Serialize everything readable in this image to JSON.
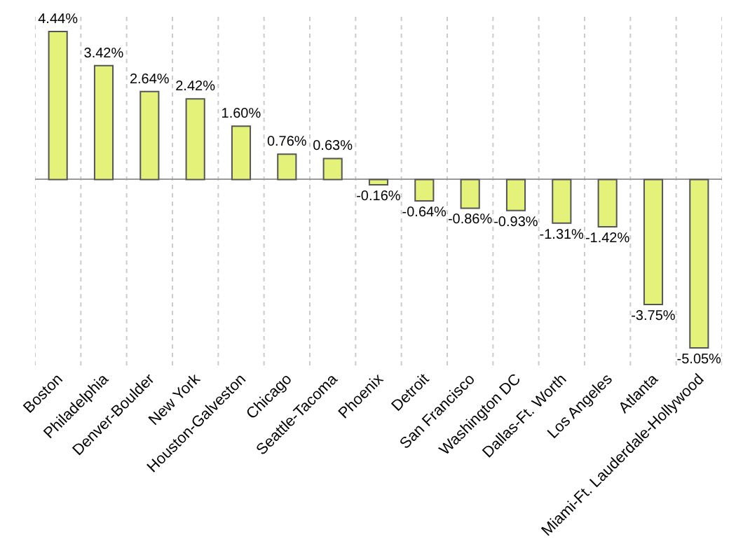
{
  "chart_data": {
    "type": "bar",
    "categories": [
      "Boston",
      "Philadelphia",
      "Denver-Boulder",
      "New York",
      "Houston-Galveston",
      "Chicago",
      "Seattle-Tacoma",
      "Phoenix",
      "Detroit",
      "San Francisco",
      "Washington DC",
      "Dallas-Ft. Worth",
      "Los Angeles",
      "Atlanta",
      "Miami-Ft. Lauderdale-Hollywood"
    ],
    "values": [
      4.44,
      3.42,
      2.64,
      2.42,
      1.6,
      0.76,
      0.63,
      -0.16,
      -0.64,
      -0.86,
      -0.93,
      -1.31,
      -1.42,
      -3.75,
      -5.05
    ],
    "value_labels": [
      "4.44%",
      "3.42%",
      "2.64%",
      "2.42%",
      "1.60%",
      "0.76%",
      "0.63%",
      "-0.16%",
      "-0.64%",
      "-0.86%",
      "-0.93%",
      "-1.31%",
      "-1.42%",
      "-3.75%",
      "-5.05%"
    ],
    "color": "#e5f27a",
    "grid": "x",
    "tick_labels": "x"
  }
}
